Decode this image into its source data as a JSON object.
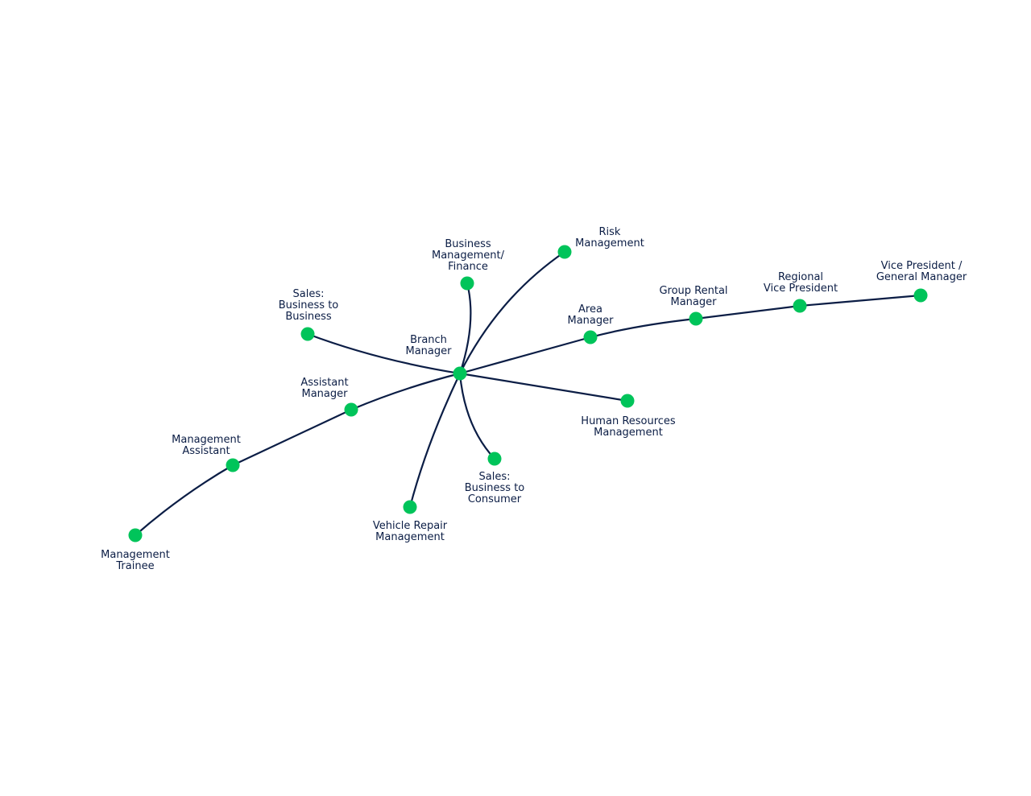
{
  "colors": {
    "line": "#0b1d45",
    "node": "#00c45a",
    "text": "#0b1d45"
  },
  "nodes": {
    "branch_manager": {
      "label": [
        "Branch",
        "Manager"
      ]
    },
    "sales_b2b": {
      "label": [
        "Sales:",
        "Business to",
        "Business"
      ]
    },
    "business_management": {
      "label": [
        "Business",
        "Management/",
        "Finance"
      ]
    },
    "risk_management": {
      "label": [
        "Risk",
        "Management"
      ]
    },
    "area_manager": {
      "label": [
        "Area",
        "Manager"
      ]
    },
    "group_rental_manager": {
      "label": [
        "Group Rental",
        "Manager"
      ]
    },
    "regional_vp": {
      "label": [
        "Regional",
        "Vice President"
      ]
    },
    "vp_gm": {
      "label": [
        "Vice President /",
        "General Manager"
      ]
    },
    "hr_management": {
      "label": [
        "Human Resources",
        "Management"
      ]
    },
    "sales_b2c": {
      "label": [
        "Sales:",
        "Business to",
        "Consumer"
      ]
    },
    "vehicle_repair": {
      "label": [
        "Vehicle Repair",
        "Management"
      ]
    },
    "assistant_manager": {
      "label": [
        "Assistant",
        "Manager"
      ]
    },
    "management_assistant": {
      "label": [
        "Management",
        "Assistant"
      ]
    },
    "management_trainee": {
      "label": [
        "Management",
        "Trainee"
      ]
    }
  },
  "edges": [
    [
      "branch_manager",
      "sales_b2b"
    ],
    [
      "branch_manager",
      "business_management"
    ],
    [
      "branch_manager",
      "risk_management"
    ],
    [
      "branch_manager",
      "area_manager"
    ],
    [
      "area_manager",
      "group_rental_manager"
    ],
    [
      "group_rental_manager",
      "regional_vp"
    ],
    [
      "regional_vp",
      "vp_gm"
    ],
    [
      "branch_manager",
      "hr_management"
    ],
    [
      "branch_manager",
      "sales_b2c"
    ],
    [
      "branch_manager",
      "vehicle_repair"
    ],
    [
      "branch_manager",
      "assistant_manager"
    ],
    [
      "assistant_manager",
      "management_assistant"
    ],
    [
      "management_assistant",
      "management_trainee"
    ]
  ]
}
